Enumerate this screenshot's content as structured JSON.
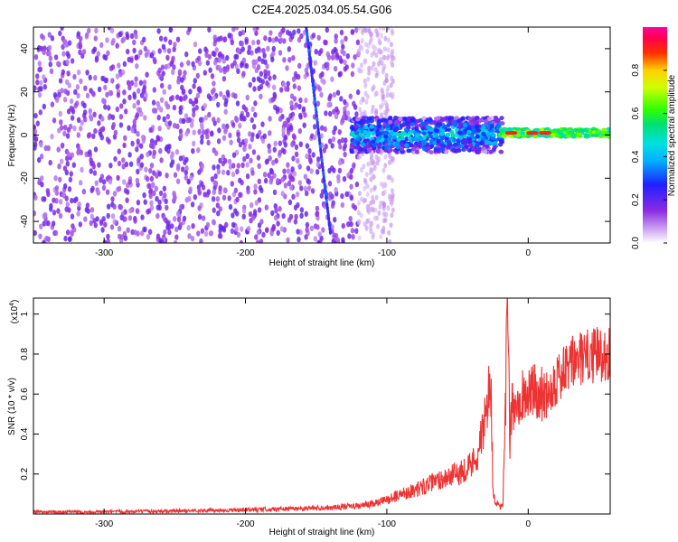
{
  "figure": {
    "title": "C2E4.2025.034.05.54.G06"
  },
  "chart_data": [
    {
      "type": "heatmap",
      "title": "C2E4.2025.034.05.54.G06",
      "xlabel": "Height of straight line (km)",
      "ylabel": "Frequency (Hz)",
      "xlim": [
        -350,
        58
      ],
      "ylim": [
        -50,
        50
      ],
      "xticks": [
        -300,
        -200,
        -100,
        0
      ],
      "yticks": [
        -40,
        -20,
        0,
        20,
        40
      ],
      "colorbar": {
        "label": "Normalized spectral amplitude",
        "range": [
          0.0,
          1.0
        ],
        "ticks": [
          0.0,
          0.2,
          0.4,
          0.6,
          0.8
        ],
        "colormap": "rainbow: white-lavender (0) → purple → blue → cyan → green → yellow → red → magenta (1)"
      },
      "features": [
        {
          "description": "scattered low-amplitude speckle",
          "x_range": [
            -350,
            -120
          ],
          "freq_range": [
            -50,
            50
          ],
          "amplitude": 0.1
        },
        {
          "description": "oblique streak",
          "x_start": -157,
          "freq_start": 50,
          "x_end": -140,
          "freq_end": -45
        },
        {
          "description": "band around 0 Hz",
          "x_range": [
            -125,
            -18
          ],
          "freq_range": [
            -8,
            8
          ],
          "amplitude": 0.4
        },
        {
          "description": "narrow carrier line at ~1 Hz",
          "x_range": [
            -20,
            58
          ],
          "freq_range": [
            -1,
            3
          ],
          "amplitude": 0.6
        },
        {
          "description": "red peaks",
          "x_values": [
            -12,
            3,
            12
          ],
          "freq": 1,
          "amplitude": 0.95
        }
      ]
    },
    {
      "type": "line",
      "xlabel": "Height of straight line (km)",
      "ylabel": "SNR (10 * v/v)",
      "yscale_label": "(x10",
      "yscale_exponent": "4",
      "yscale_close": ")",
      "xlim": [
        -350,
        58
      ],
      "ylim": [
        0,
        1.08
      ],
      "xticks": [
        -300,
        -200,
        -100,
        0
      ],
      "yticks": [
        0.2,
        0.4,
        0.6,
        0.8,
        1.0
      ],
      "color": "#ee3333",
      "series": [
        {
          "x": [
            -350,
            -300,
            -250,
            -200,
            -150,
            -120,
            -110,
            -100,
            -90,
            -80,
            -70,
            -60,
            -50,
            -40,
            -35,
            -30,
            -28,
            -26,
            -25,
            -22,
            -20,
            -18,
            -16,
            -15,
            -14,
            -13,
            -12,
            -10,
            -5,
            0,
            5,
            10,
            15,
            20,
            25,
            30,
            35,
            40,
            45,
            50,
            58
          ],
          "y": [
            0.01,
            0.01,
            0.015,
            0.02,
            0.03,
            0.04,
            0.05,
            0.07,
            0.1,
            0.12,
            0.15,
            0.18,
            0.2,
            0.25,
            0.32,
            0.48,
            0.62,
            0.6,
            0.1,
            0.05,
            0.03,
            0.04,
            0.55,
            1.07,
            0.9,
            0.28,
            0.5,
            0.55,
            0.6,
            0.6,
            0.62,
            0.6,
            0.62,
            0.68,
            0.7,
            0.75,
            0.77,
            0.78,
            0.79,
            0.8,
            0.8
          ]
        }
      ]
    }
  ]
}
